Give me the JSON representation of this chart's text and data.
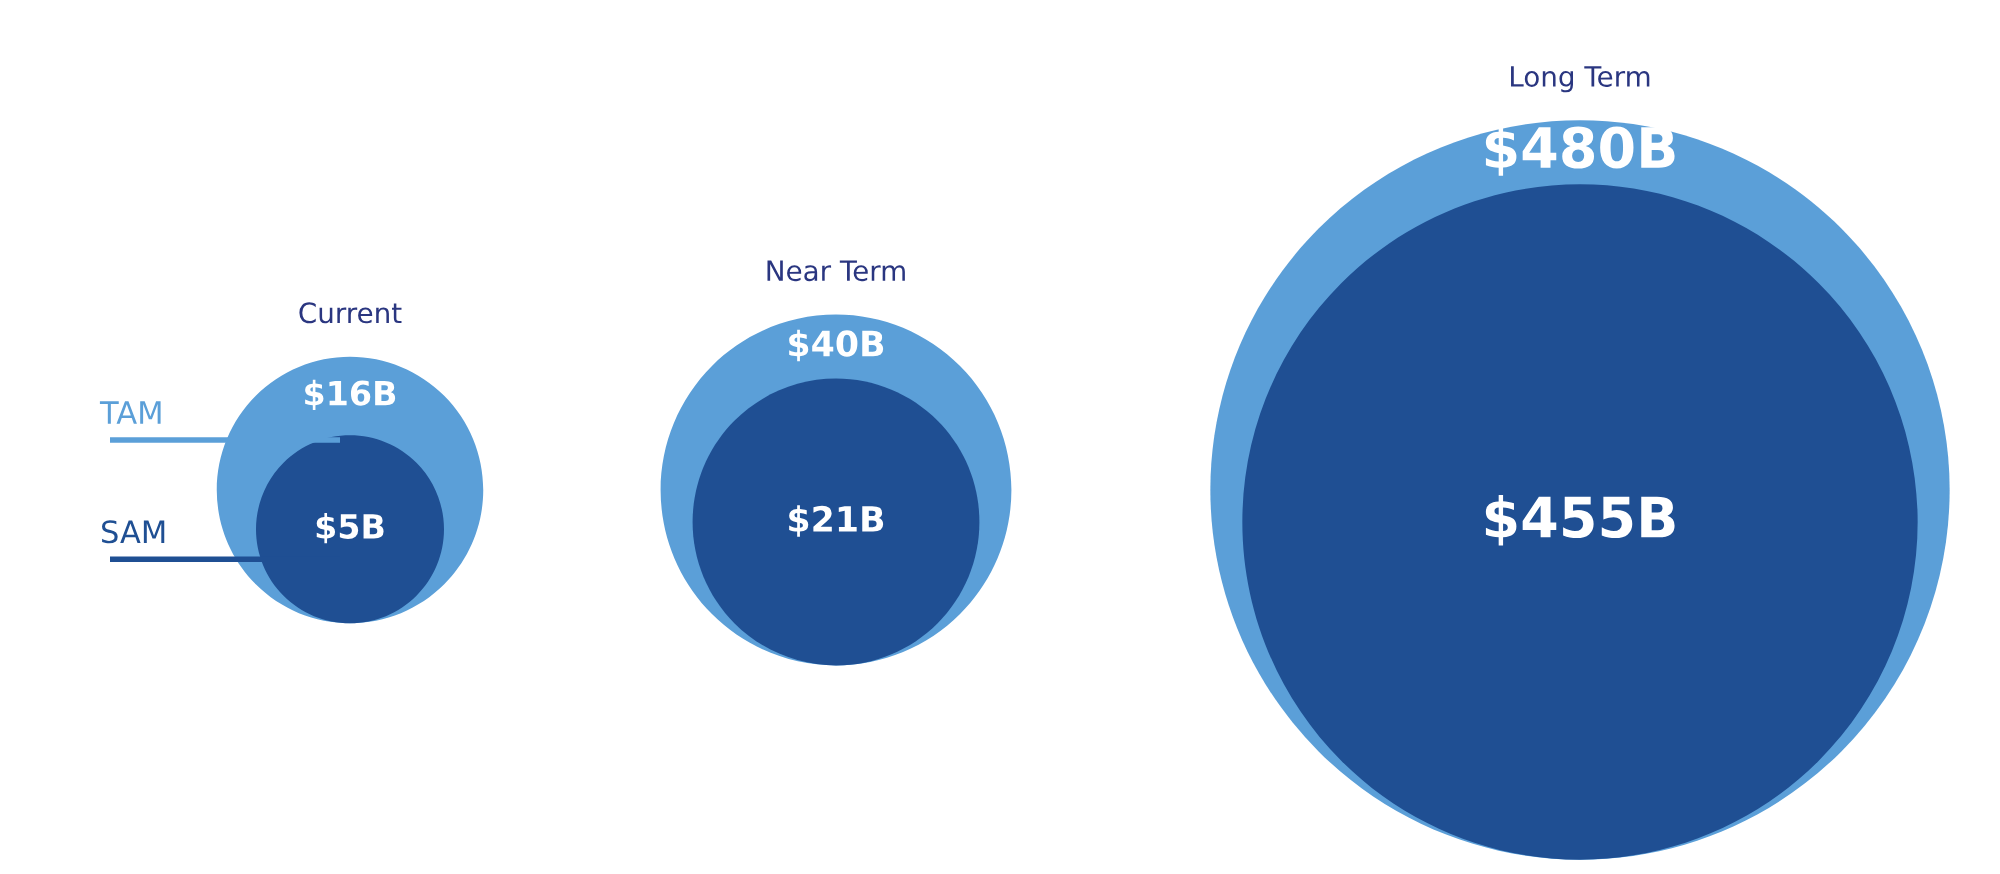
{
  "chart_data": {
    "type": "other",
    "categories": [
      "Current",
      "Near Term",
      "Long Term"
    ],
    "series": [
      {
        "name": "TAM",
        "color": "#5b9fd8",
        "values": [
          16,
          40,
          480
        ],
        "value_labels": [
          "$16B",
          "$40B",
          "$480B"
        ]
      },
      {
        "name": "SAM",
        "color": "#1f4f93",
        "values": [
          5,
          21,
          455
        ],
        "value_labels": [
          "$5B",
          "$21B",
          "$455B"
        ]
      }
    ]
  }
}
